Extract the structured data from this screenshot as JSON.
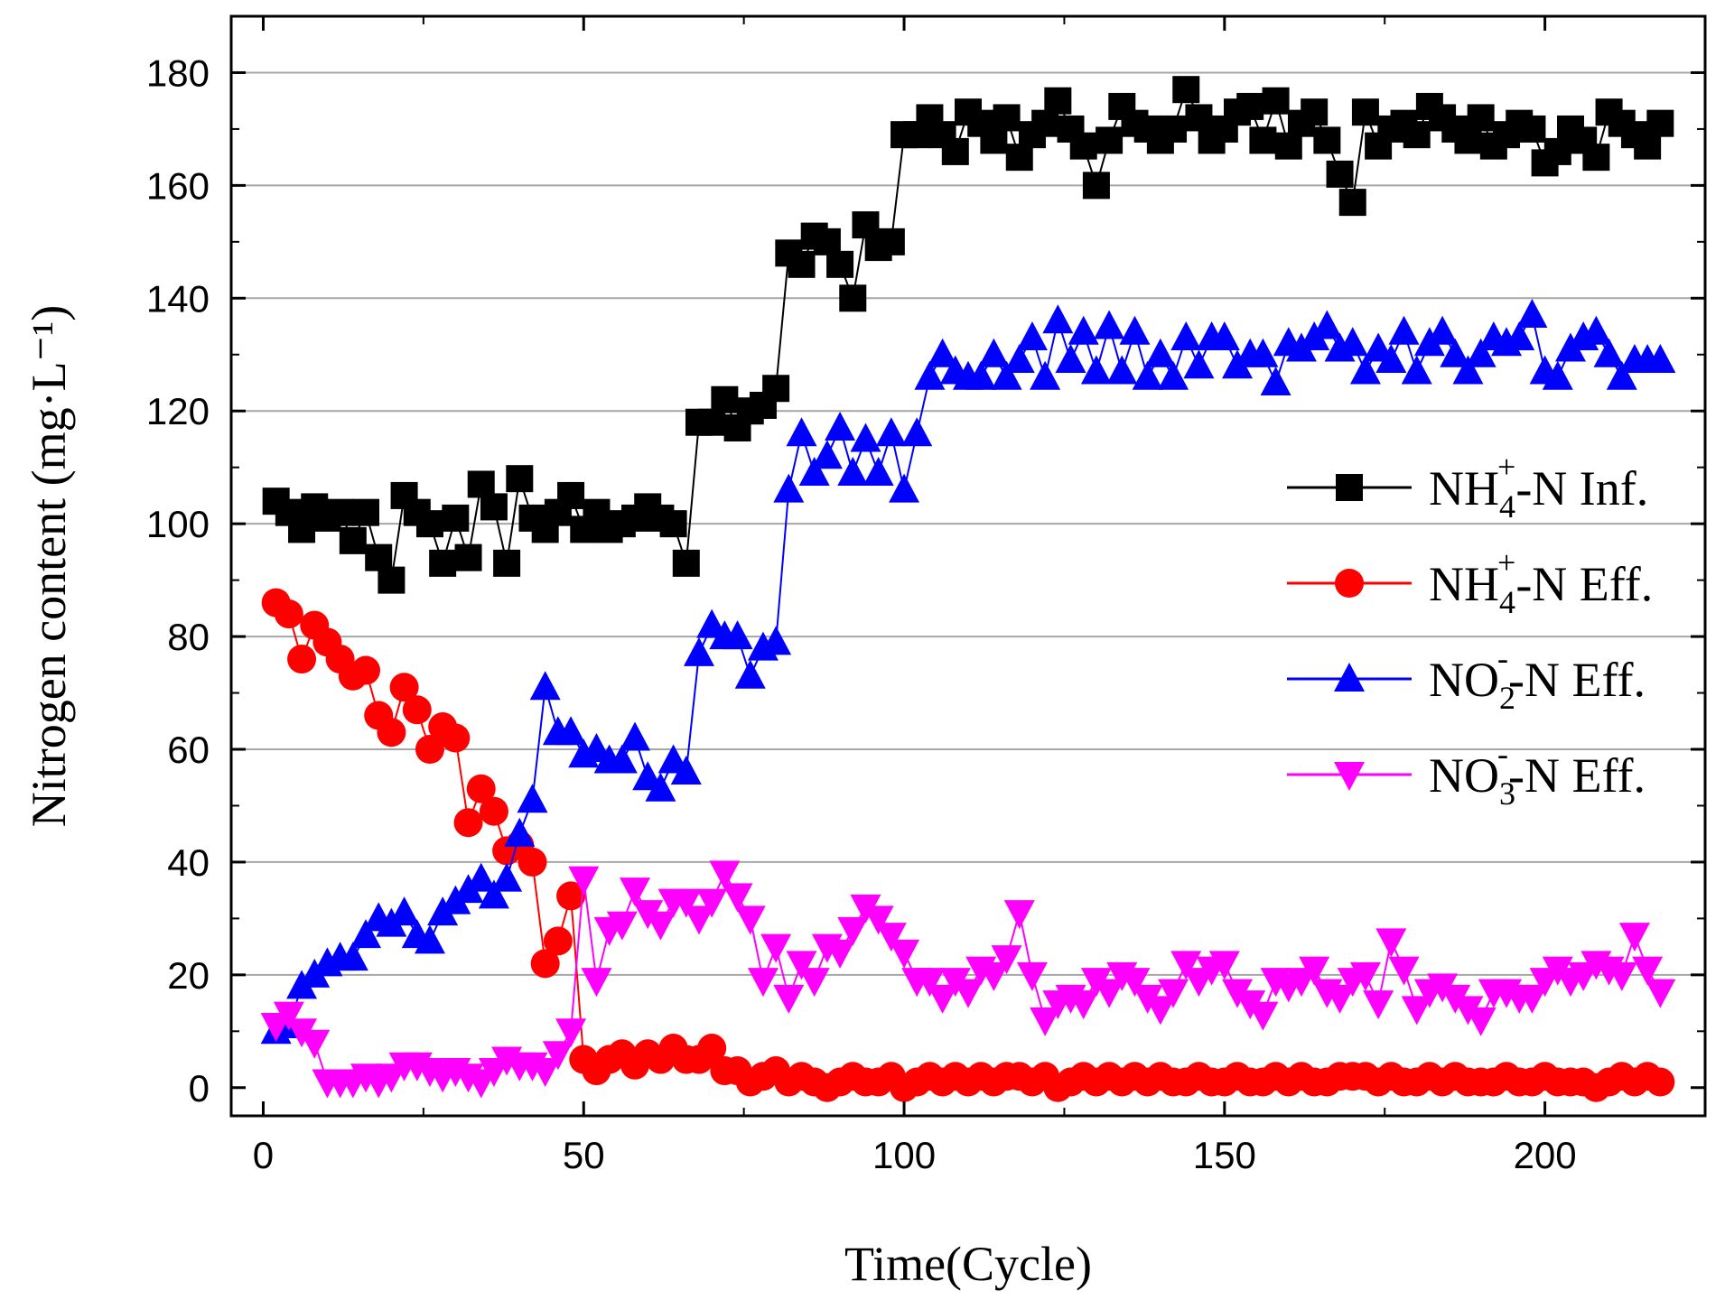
{
  "chart_data": {
    "type": "line",
    "xlabel": "Time(Cycle)",
    "ylabel": "Nitrogen content (mg·L⁻¹)",
    "xlim": [
      -5,
      225
    ],
    "ylim": [
      -5,
      190
    ],
    "xticks": [
      0,
      50,
      100,
      150,
      200
    ],
    "yticks": [
      0,
      20,
      40,
      60,
      80,
      100,
      120,
      140,
      160,
      180
    ],
    "grid": "horizontal",
    "legend_position": "right-middle",
    "series": [
      {
        "name": "NH4+-N Inf.",
        "legend": {
          "base": "NH",
          "sub": "4",
          "sup": "+",
          "rest": "-N Inf."
        },
        "color": "#000000",
        "marker": "square",
        "x": [
          2,
          4,
          6,
          8,
          10,
          12,
          14,
          16,
          18,
          20,
          22,
          24,
          26,
          28,
          30,
          32,
          34,
          36,
          38,
          40,
          42,
          44,
          46,
          48,
          50,
          52,
          54,
          56,
          58,
          60,
          62,
          64,
          66,
          68,
          70,
          72,
          74,
          76,
          78,
          80,
          82,
          84,
          86,
          88,
          90,
          92,
          94,
          96,
          98,
          100,
          102,
          104,
          106,
          108,
          110,
          112,
          114,
          116,
          118,
          120,
          122,
          124,
          126,
          128,
          130,
          132,
          134,
          136,
          138,
          140,
          142,
          144,
          146,
          148,
          150,
          152,
          154,
          156,
          158,
          160,
          162,
          164,
          166,
          168,
          170,
          172,
          174,
          176,
          178,
          180,
          182,
          184,
          186,
          188,
          190,
          192,
          194,
          196,
          198,
          200,
          202,
          204,
          206,
          208,
          210,
          212,
          214,
          216,
          218
        ],
        "y": [
          104,
          102,
          99,
          103,
          101,
          102,
          97,
          102,
          94,
          90,
          105,
          102,
          100,
          93,
          101,
          94,
          107,
          103,
          93,
          108,
          101,
          99,
          102,
          105,
          99,
          102,
          99,
          100,
          101,
          103,
          101,
          100,
          93,
          118,
          118,
          122,
          117,
          120,
          121,
          124,
          148,
          146,
          151,
          150,
          146,
          140,
          153,
          149,
          150,
          169,
          169,
          172,
          169,
          166,
          173,
          171,
          168,
          172,
          165,
          169,
          171,
          175,
          170,
          167,
          160,
          168,
          174,
          171,
          170,
          168,
          170,
          177,
          172,
          168,
          170,
          173,
          174,
          168,
          175,
          167,
          171,
          173,
          168,
          162,
          157,
          173,
          167,
          170,
          171,
          169,
          174,
          172,
          170,
          168,
          172,
          167,
          169,
          171,
          170,
          164,
          166,
          170,
          168,
          165,
          173,
          171,
          169,
          167,
          171
        ]
      },
      {
        "name": "NH4+-N Eff.",
        "legend": {
          "base": "NH",
          "sub": "4",
          "sup": "+",
          "rest": "-N Eff."
        },
        "color": "#ff0000",
        "marker": "circle",
        "x": [
          2,
          4,
          6,
          8,
          10,
          12,
          14,
          16,
          18,
          20,
          22,
          24,
          26,
          28,
          30,
          32,
          34,
          36,
          38,
          40,
          42,
          44,
          46,
          48,
          50,
          52,
          54,
          56,
          58,
          60,
          62,
          64,
          66,
          68,
          70,
          72,
          74,
          76,
          78,
          80,
          82,
          84,
          86,
          88,
          90,
          92,
          94,
          96,
          98,
          100,
          102,
          104,
          106,
          108,
          110,
          112,
          114,
          116,
          118,
          120,
          122,
          124,
          126,
          128,
          130,
          132,
          134,
          136,
          138,
          140,
          142,
          144,
          146,
          148,
          150,
          152,
          154,
          156,
          158,
          160,
          162,
          164,
          166,
          168,
          170,
          172,
          174,
          176,
          178,
          180,
          182,
          184,
          186,
          188,
          190,
          192,
          194,
          196,
          198,
          200,
          202,
          204,
          206,
          208,
          210,
          212,
          214,
          216,
          218
        ],
        "y": [
          86,
          84,
          76,
          82,
          79,
          76,
          73,
          74,
          66,
          63,
          71,
          67,
          60,
          64,
          62,
          47,
          53,
          49,
          42,
          43,
          40,
          22,
          26,
          34,
          5,
          3,
          5,
          6,
          4,
          6,
          5,
          7,
          5,
          5,
          7,
          3,
          3,
          1,
          2,
          3,
          1,
          2,
          1,
          0,
          1,
          2,
          1,
          1,
          2,
          0,
          1,
          2,
          1,
          2,
          1,
          2,
          1,
          2,
          2,
          1,
          2,
          0,
          1,
          2,
          1,
          2,
          1,
          2,
          1,
          2,
          1,
          1,
          2,
          1,
          1,
          2,
          1,
          1,
          2,
          1,
          2,
          1,
          1,
          2,
          2,
          2,
          1,
          2,
          1,
          1,
          2,
          1,
          2,
          1,
          1,
          1,
          2,
          1,
          1,
          2,
          1,
          1,
          1,
          0,
          1,
          2,
          1,
          2,
          1
        ]
      },
      {
        "name": "NO2--N Eff.",
        "legend": {
          "base": "NO",
          "sub": "2",
          "sup": "-",
          "rest": "-N Eff."
        },
        "color": "#0000ff",
        "marker": "triangle-up",
        "x": [
          2,
          4,
          6,
          8,
          10,
          12,
          14,
          16,
          18,
          20,
          22,
          24,
          26,
          28,
          30,
          32,
          34,
          36,
          38,
          40,
          42,
          44,
          46,
          48,
          50,
          52,
          54,
          56,
          58,
          60,
          62,
          64,
          66,
          68,
          70,
          72,
          74,
          76,
          78,
          80,
          82,
          84,
          86,
          88,
          90,
          92,
          94,
          96,
          98,
          100,
          102,
          104,
          106,
          108,
          110,
          112,
          114,
          116,
          118,
          120,
          122,
          124,
          126,
          128,
          130,
          132,
          134,
          136,
          138,
          140,
          142,
          144,
          146,
          148,
          150,
          152,
          154,
          156,
          158,
          160,
          162,
          164,
          166,
          168,
          170,
          172,
          174,
          176,
          178,
          180,
          182,
          184,
          186,
          188,
          190,
          192,
          194,
          196,
          198,
          200,
          202,
          204,
          206,
          208,
          210,
          212,
          214,
          216,
          218
        ],
        "y": [
          10,
          11,
          18,
          20,
          22,
          23,
          23,
          27,
          30,
          29,
          31,
          27,
          26,
          31,
          33,
          35,
          37,
          34,
          37,
          45,
          51,
          71,
          63,
          63,
          59,
          60,
          58,
          58,
          62,
          55,
          53,
          58,
          56,
          77,
          82,
          80,
          80,
          73,
          78,
          79,
          106,
          116,
          109,
          112,
          117,
          109,
          115,
          109,
          116,
          106,
          116,
          126,
          130,
          127,
          126,
          126,
          130,
          126,
          129,
          133,
          126,
          136,
          129,
          134,
          127,
          135,
          127,
          134,
          126,
          130,
          126,
          133,
          128,
          133,
          133,
          128,
          130,
          130,
          125,
          132,
          131,
          133,
          135,
          131,
          132,
          127,
          131,
          129,
          134,
          127,
          132,
          134,
          130,
          127,
          130,
          133,
          132,
          133,
          137,
          127,
          126,
          131,
          133,
          134,
          130,
          126,
          129,
          129,
          129
        ]
      },
      {
        "name": "NO3--N Eff.",
        "legend": {
          "base": "NO",
          "sub": "3",
          "sup": "-",
          "rest": "-N Eff."
        },
        "color": "#ff00ff",
        "marker": "triangle-down",
        "x": [
          2,
          4,
          6,
          8,
          10,
          12,
          14,
          16,
          18,
          20,
          22,
          24,
          26,
          28,
          30,
          32,
          34,
          36,
          38,
          40,
          42,
          44,
          46,
          48,
          50,
          52,
          54,
          56,
          58,
          60,
          62,
          64,
          66,
          68,
          70,
          72,
          74,
          76,
          78,
          80,
          82,
          84,
          86,
          88,
          90,
          92,
          94,
          96,
          98,
          100,
          102,
          104,
          106,
          108,
          110,
          112,
          114,
          116,
          118,
          120,
          122,
          124,
          126,
          128,
          130,
          132,
          134,
          136,
          138,
          140,
          142,
          144,
          146,
          148,
          150,
          152,
          154,
          156,
          158,
          160,
          162,
          164,
          166,
          168,
          170,
          172,
          174,
          176,
          178,
          180,
          182,
          184,
          186,
          188,
          190,
          192,
          194,
          196,
          198,
          200,
          202,
          204,
          206,
          208,
          210,
          212,
          214,
          216,
          218
        ],
        "y": [
          11,
          13,
          10,
          8,
          1,
          1,
          1,
          2,
          1,
          2,
          4,
          4,
          3,
          2,
          3,
          2,
          1,
          3,
          5,
          4,
          4,
          3,
          6,
          10,
          37,
          19,
          28,
          29,
          35,
          31,
          29,
          33,
          33,
          30,
          33,
          38,
          34,
          30,
          19,
          25,
          16,
          22,
          19,
          25,
          24,
          28,
          32,
          30,
          27,
          24,
          19,
          19,
          16,
          19,
          17,
          21,
          20,
          23,
          31,
          20,
          12,
          15,
          16,
          15,
          19,
          17,
          20,
          19,
          16,
          14,
          17,
          22,
          19,
          21,
          22,
          17,
          15,
          13,
          19,
          18,
          19,
          21,
          17,
          16,
          19,
          20,
          15,
          26,
          21,
          14,
          17,
          18,
          16,
          14,
          12,
          17,
          17,
          16,
          16,
          19,
          21,
          19,
          20,
          22,
          21,
          20,
          27,
          21,
          17
        ]
      }
    ]
  }
}
